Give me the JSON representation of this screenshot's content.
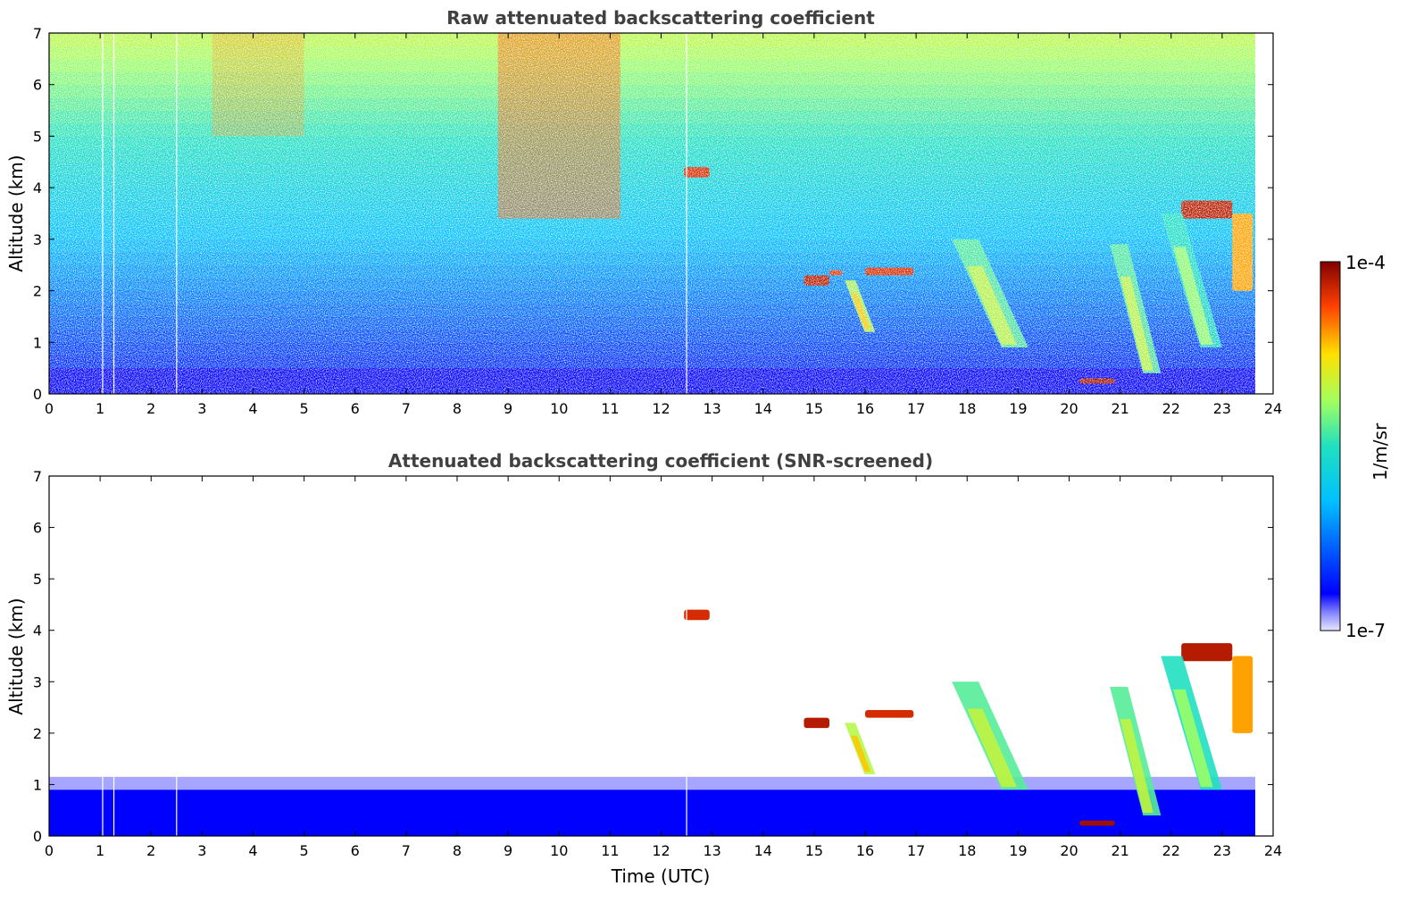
{
  "chart_data": [
    {
      "type": "heatmap",
      "title": "Raw attenuated backscattering coefficient",
      "xlabel": "",
      "ylabel": "Altitude (km)",
      "xlim": [
        0,
        24
      ],
      "ylim": [
        0,
        7
      ],
      "xticks": [
        "0",
        "1",
        "2",
        "3",
        "4",
        "5",
        "6",
        "7",
        "8",
        "9",
        "10",
        "11",
        "12",
        "13",
        "14",
        "15",
        "16",
        "17",
        "18",
        "19",
        "20",
        "21",
        "22",
        "23",
        "24"
      ],
      "yticks": [
        "0",
        "1",
        "2",
        "3",
        "4",
        "5",
        "6",
        "7"
      ],
      "data_end_time": 23.65,
      "features": [
        {
          "kind": "boundary_layer",
          "t": [
            0,
            23.65
          ],
          "alt": [
            0,
            0.5
          ],
          "level": 0.1
        },
        {
          "kind": "cloud",
          "t": [
            12.45,
            12.95
          ],
          "alt": [
            4.2,
            4.4
          ],
          "level": 0.92
        },
        {
          "kind": "cloud",
          "t": [
            14.8,
            15.3
          ],
          "alt": [
            2.1,
            2.3
          ],
          "level": 0.95
        },
        {
          "kind": "cloud",
          "t": [
            15.3,
            15.55
          ],
          "alt": [
            2.3,
            2.4
          ],
          "level": 0.9
        },
        {
          "kind": "cloud",
          "t": [
            16.0,
            16.95
          ],
          "alt": [
            2.3,
            2.45
          ],
          "level": 0.92
        },
        {
          "kind": "cloud",
          "t": [
            20.2,
            20.9
          ],
          "alt": [
            0.2,
            0.3
          ],
          "level": 0.97
        },
        {
          "kind": "cloud",
          "t": [
            22.2,
            23.2
          ],
          "alt": [
            3.4,
            3.75
          ],
          "level": 0.95
        },
        {
          "kind": "cloud",
          "t": [
            23.2,
            23.6
          ],
          "alt": [
            2.0,
            3.5
          ],
          "level": 0.8
        },
        {
          "kind": "virga",
          "t": [
            15.6,
            16.2
          ],
          "alt": [
            1.2,
            2.2
          ],
          "level": 0.65
        },
        {
          "kind": "virga",
          "t": [
            17.7,
            19.2
          ],
          "alt": [
            0.9,
            3.0
          ],
          "level": 0.55
        },
        {
          "kind": "virga",
          "t": [
            20.8,
            21.8
          ],
          "alt": [
            0.4,
            2.9
          ],
          "level": 0.55
        },
        {
          "kind": "virga",
          "t": [
            21.8,
            23.0
          ],
          "alt": [
            0.9,
            3.5
          ],
          "level": 0.5
        }
      ]
    },
    {
      "type": "heatmap",
      "title": "Attenuated backscattering coefficient (SNR-screened)",
      "xlabel": "Time (UTC)",
      "ylabel": "Altitude (km)",
      "xlim": [
        0,
        24
      ],
      "ylim": [
        0,
        7
      ],
      "xticks": [
        "0",
        "1",
        "2",
        "3",
        "4",
        "5",
        "6",
        "7",
        "8",
        "9",
        "10",
        "11",
        "12",
        "13",
        "14",
        "15",
        "16",
        "17",
        "18",
        "19",
        "20",
        "21",
        "22",
        "23",
        "24"
      ],
      "yticks": [
        "0",
        "1",
        "2",
        "3",
        "4",
        "5",
        "6",
        "7"
      ],
      "data_end_time": 23.65,
      "features": [
        {
          "kind": "boundary_layer",
          "t": [
            0,
            23.65
          ],
          "alt": [
            0,
            0.9
          ],
          "level": 0.1
        },
        {
          "kind": "cloud",
          "t": [
            12.45,
            12.95
          ],
          "alt": [
            4.2,
            4.4
          ],
          "level": 0.92
        },
        {
          "kind": "cloud",
          "t": [
            14.8,
            15.3
          ],
          "alt": [
            2.1,
            2.3
          ],
          "level": 0.95
        },
        {
          "kind": "cloud",
          "t": [
            16.0,
            16.95
          ],
          "alt": [
            2.3,
            2.45
          ],
          "level": 0.92
        },
        {
          "kind": "cloud",
          "t": [
            20.2,
            20.9
          ],
          "alt": [
            0.2,
            0.3
          ],
          "level": 0.97
        },
        {
          "kind": "cloud",
          "t": [
            22.2,
            23.2
          ],
          "alt": [
            3.4,
            3.75
          ],
          "level": 0.95
        },
        {
          "kind": "cloud",
          "t": [
            23.2,
            23.6
          ],
          "alt": [
            2.0,
            3.5
          ],
          "level": 0.8
        },
        {
          "kind": "virga",
          "t": [
            15.6,
            16.2
          ],
          "alt": [
            1.2,
            2.2
          ],
          "level": 0.65
        },
        {
          "kind": "virga",
          "t": [
            17.7,
            19.2
          ],
          "alt": [
            0.9,
            3.0
          ],
          "level": 0.55
        },
        {
          "kind": "virga",
          "t": [
            20.8,
            21.8
          ],
          "alt": [
            0.4,
            2.9
          ],
          "level": 0.55
        },
        {
          "kind": "virga",
          "t": [
            21.8,
            23.0
          ],
          "alt": [
            0.9,
            3.5
          ],
          "level": 0.5
        }
      ]
    }
  ],
  "colorbar": {
    "max_label": "1e-4",
    "min_label": "1e-7",
    "unit_label": "1/m/sr",
    "colormap": "jet"
  }
}
